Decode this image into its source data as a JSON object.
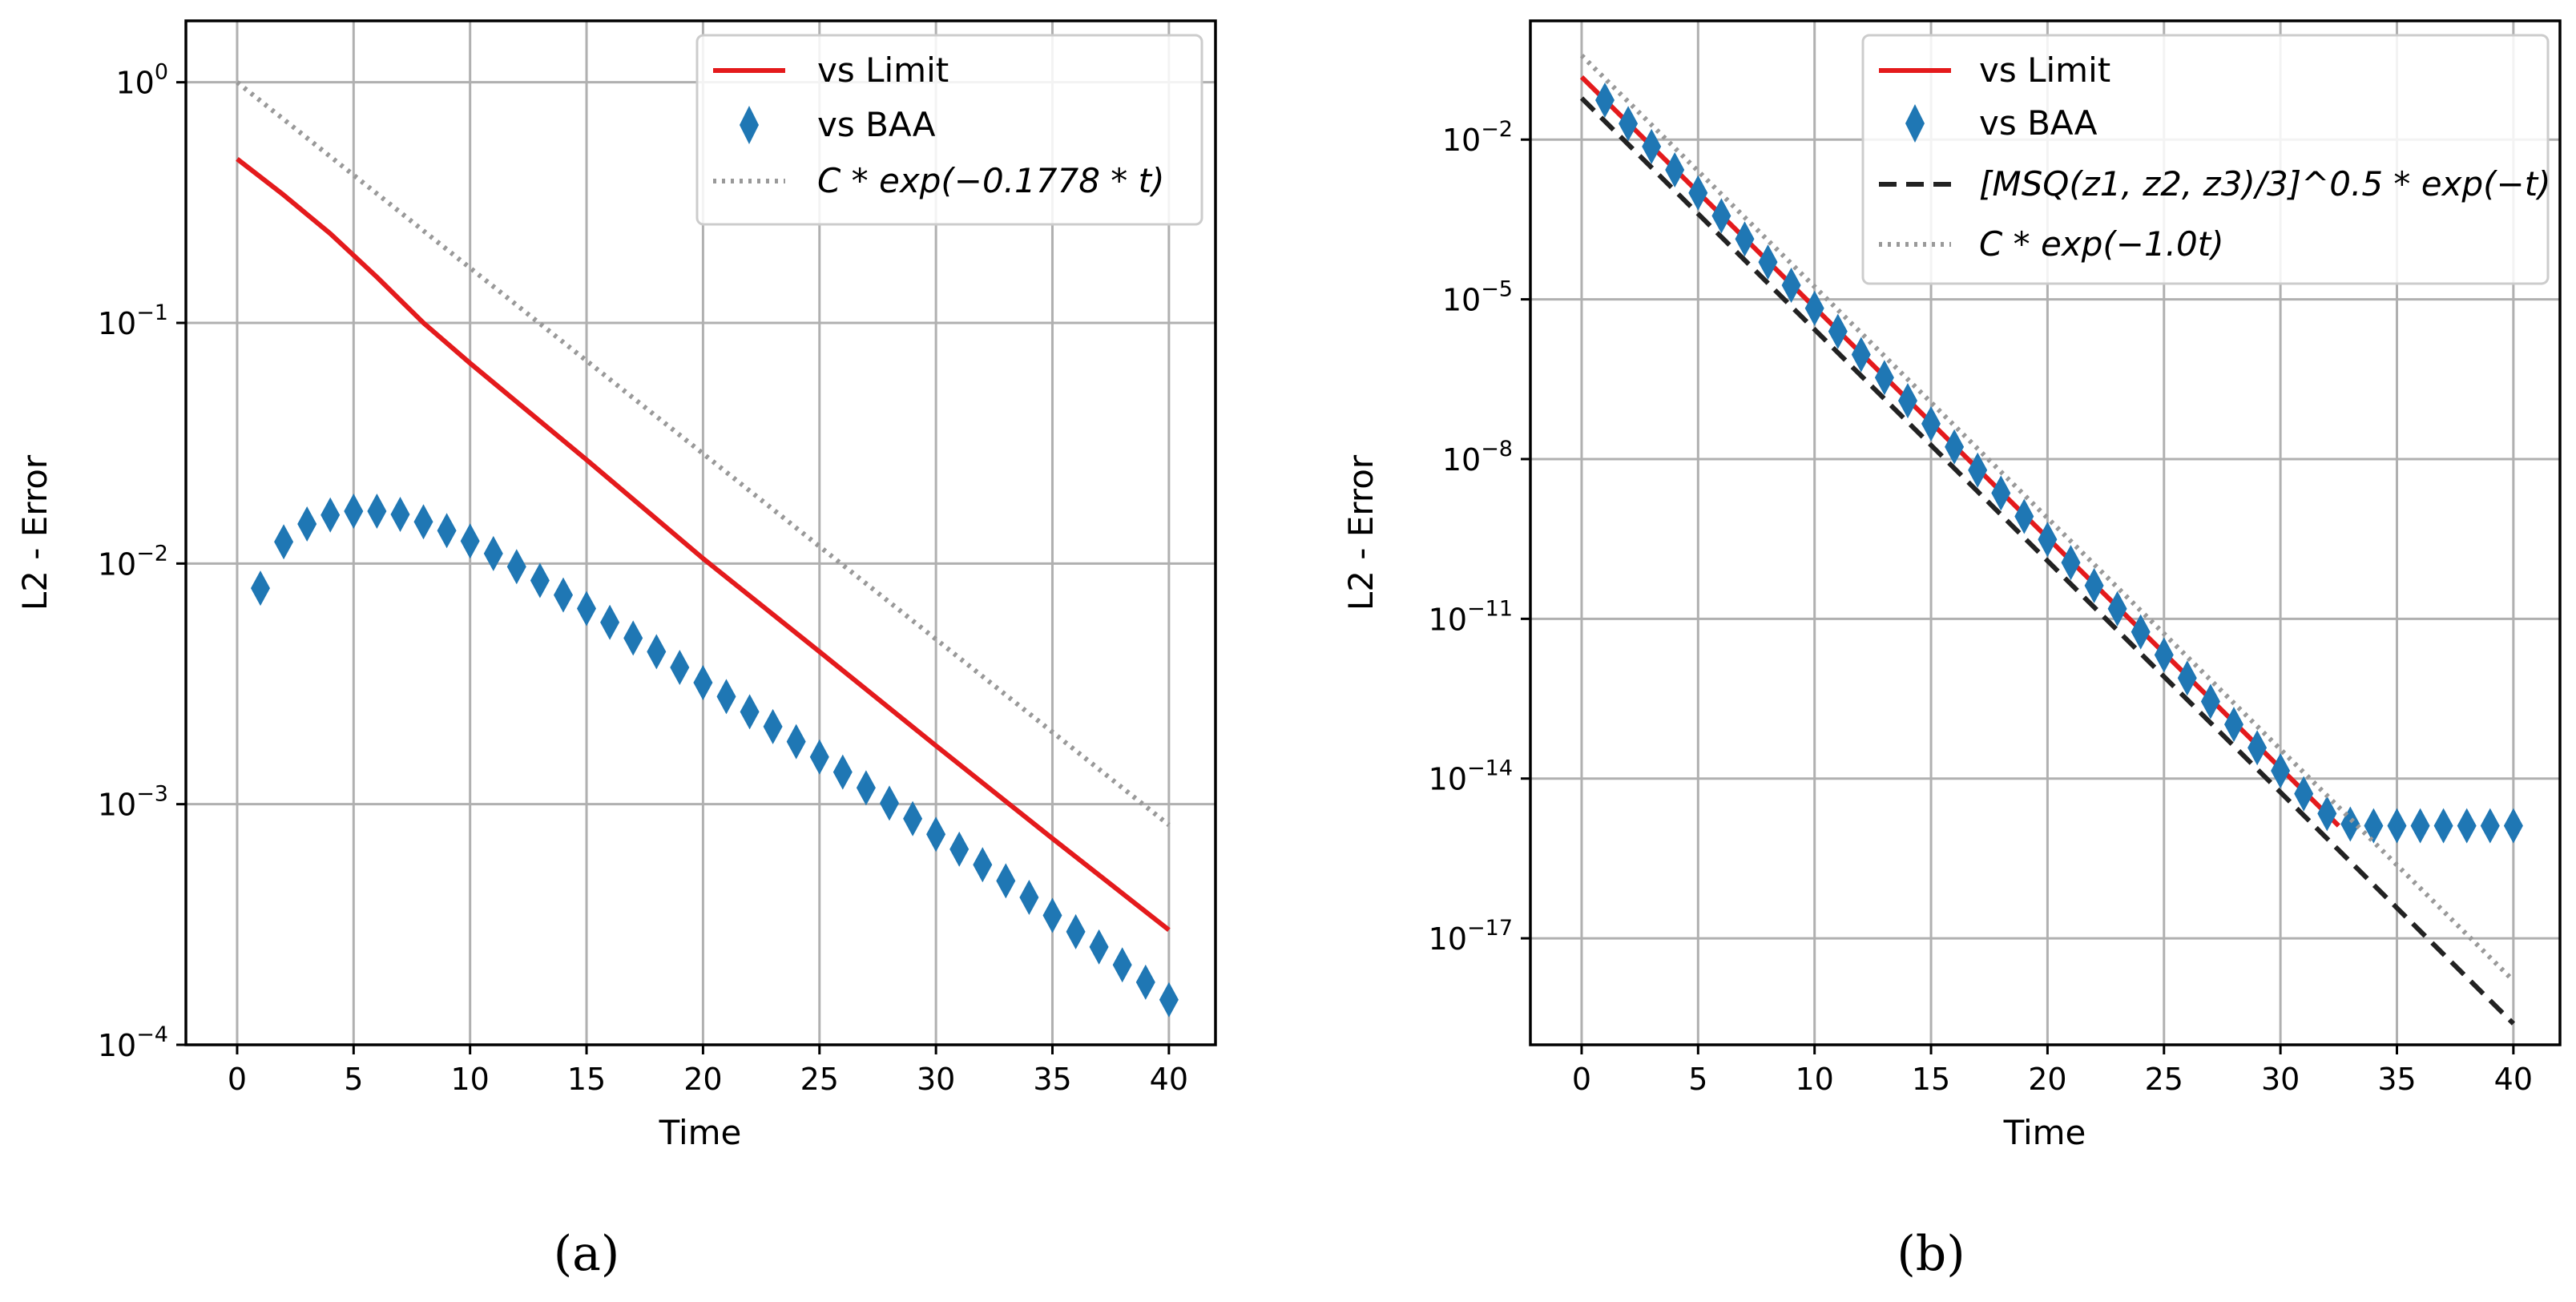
{
  "panels": [
    {
      "caption": "(a)",
      "xlabel": "Time",
      "ylabel": "L2 - Error",
      "xticks": [
        "0",
        "5",
        "10",
        "15",
        "20",
        "25",
        "30",
        "35",
        "40"
      ],
      "yticks": [
        {
          "base": "10",
          "exp": "−4"
        },
        {
          "base": "10",
          "exp": "−3"
        },
        {
          "base": "10",
          "exp": "−2"
        },
        {
          "base": "10",
          "exp": "−1"
        },
        {
          "base": "10",
          "exp": "0"
        }
      ],
      "legend": [
        {
          "label": "vs Limit",
          "style": "solid",
          "color": "#e41a1c"
        },
        {
          "label": "vs BAA",
          "style": "marker",
          "color": "#1f77b4"
        },
        {
          "label": "C * exp(−0.1778 * t)",
          "style": "dotted",
          "color": "#999999"
        }
      ]
    },
    {
      "caption": "(b)",
      "xlabel": "Time",
      "ylabel": "L2 - Error",
      "xticks": [
        "0",
        "5",
        "10",
        "15",
        "20",
        "25",
        "30",
        "35",
        "40"
      ],
      "yticks": [
        {
          "base": "10",
          "exp": "−17"
        },
        {
          "base": "10",
          "exp": "−14"
        },
        {
          "base": "10",
          "exp": "−11"
        },
        {
          "base": "10",
          "exp": "−8"
        },
        {
          "base": "10",
          "exp": "−5"
        },
        {
          "base": "10",
          "exp": "−2"
        }
      ],
      "legend": [
        {
          "label": "vs Limit",
          "style": "solid",
          "color": "#e41a1c"
        },
        {
          "label": "vs BAA",
          "style": "marker",
          "color": "#1f77b4"
        },
        {
          "label": "[MSQ(z1, z2, z3)/3]^0.5 * exp(−t)",
          "style": "dashed",
          "color": "#222222"
        },
        {
          "label": "C * exp(−1.0t)",
          "style": "dotted",
          "color": "#999999"
        }
      ]
    }
  ],
  "chart_data": [
    {
      "type": "line",
      "title": "(a)",
      "xlabel": "Time",
      "ylabel": "L2 - Error",
      "yscale": "log",
      "xlim": [
        -2.2,
        42
      ],
      "ylim": [
        0.0001,
        1.8
      ],
      "grid": true,
      "legend_position": "top-right",
      "series": [
        {
          "name": "vs Limit",
          "kind": "line",
          "color": "#e41a1c",
          "x": [
            0,
            2,
            4,
            6,
            8,
            10,
            12,
            15,
            20,
            25,
            30,
            35,
            40
          ],
          "y": [
            0.48,
            0.34,
            0.235,
            0.155,
            0.1,
            0.068,
            0.047,
            0.027,
            0.0105,
            0.0043,
            0.00175,
            0.00072,
            0.0003
          ]
        },
        {
          "name": "vs BAA",
          "kind": "scatter",
          "marker": "diamond",
          "color": "#1f77b4",
          "x": [
            1,
            2,
            3,
            4,
            5,
            6,
            7,
            8,
            9,
            10,
            11,
            12,
            13,
            14,
            15,
            16,
            17,
            18,
            19,
            20,
            21,
            22,
            23,
            24,
            25,
            26,
            27,
            28,
            29,
            30,
            31,
            32,
            33,
            34,
            35,
            36,
            37,
            38,
            39,
            40
          ],
          "y": [
            0.0079,
            0.0123,
            0.0146,
            0.0159,
            0.0165,
            0.0165,
            0.016,
            0.0149,
            0.0137,
            0.0124,
            0.011,
            0.0097,
            0.0085,
            0.0074,
            0.0065,
            0.0057,
            0.0049,
            0.0043,
            0.0037,
            0.0032,
            0.0028,
            0.00242,
            0.0021,
            0.00182,
            0.00157,
            0.00136,
            0.00117,
            0.00101,
            0.00087,
            0.00075,
            0.00065,
            0.00056,
            0.00048,
            0.00041,
            0.000345,
            0.000295,
            0.000255,
            0.000215,
            0.000182,
            0.000154
          ]
        },
        {
          "name": "C*exp(-0.1778*t)",
          "kind": "line",
          "dash": "dotted",
          "color": "#999999",
          "x": [
            0,
            40
          ],
          "y": [
            1.0,
            0.00082
          ]
        }
      ]
    },
    {
      "type": "line",
      "title": "(b)",
      "xlabel": "Time",
      "ylabel": "L2 - Error",
      "yscale": "log",
      "xlim": [
        -2.2,
        42
      ],
      "ylim": [
        1e-19,
        1.7
      ],
      "grid": true,
      "legend_position": "top-right",
      "series": [
        {
          "name": "vs Limit",
          "kind": "line",
          "color": "#e41a1c",
          "x": [
            0,
            32.5
          ],
          "y": [
            0.15,
            1.3e-15
          ]
        },
        {
          "name": "vs BAA",
          "kind": "scatter",
          "marker": "diamond",
          "color": "#1f77b4",
          "x": [
            1,
            2,
            3,
            4,
            5,
            6,
            7,
            8,
            9,
            10,
            11,
            12,
            13,
            14,
            15,
            16,
            17,
            18,
            19,
            20,
            21,
            22,
            23,
            24,
            25,
            26,
            27,
            28,
            29,
            30,
            31,
            32,
            33,
            34,
            35,
            36,
            37,
            38,
            39,
            40
          ],
          "y": [
            0.055,
            0.02,
            0.0074,
            0.0027,
            0.001,
            0.00037,
            0.000136,
            5e-05,
            1.84e-05,
            6.8e-06,
            2.5e-06,
            9.2e-07,
            3.4e-07,
            1.25e-07,
            4.6e-08,
            1.69e-08,
            6.2e-09,
            2.3e-09,
            8.4e-10,
            3.1e-10,
            1.14e-10,
            4.2e-11,
            1.55e-11,
            5.7e-12,
            2.1e-12,
            7.7e-13,
            2.8e-13,
            1.04e-13,
            3.8e-14,
            1.4e-14,
            5.2e-15,
            2.2e-15,
            1.4e-15,
            1.3e-15,
            1.3e-15,
            1.3e-15,
            1.3e-15,
            1.3e-15,
            1.3e-15,
            1.3e-15
          ]
        },
        {
          "name": "[MSQ(z1,z2,z3)/3]^0.5*exp(-t)",
          "kind": "line",
          "dash": "dashed",
          "color": "#222222",
          "x": [
            0,
            40
          ],
          "y": [
            0.06,
            2.5e-19
          ]
        },
        {
          "name": "C*exp(-1.0t)",
          "kind": "line",
          "dash": "dotted",
          "color": "#999999",
          "x": [
            0,
            40
          ],
          "y": [
            0.38,
            1.6e-18
          ]
        }
      ]
    }
  ]
}
